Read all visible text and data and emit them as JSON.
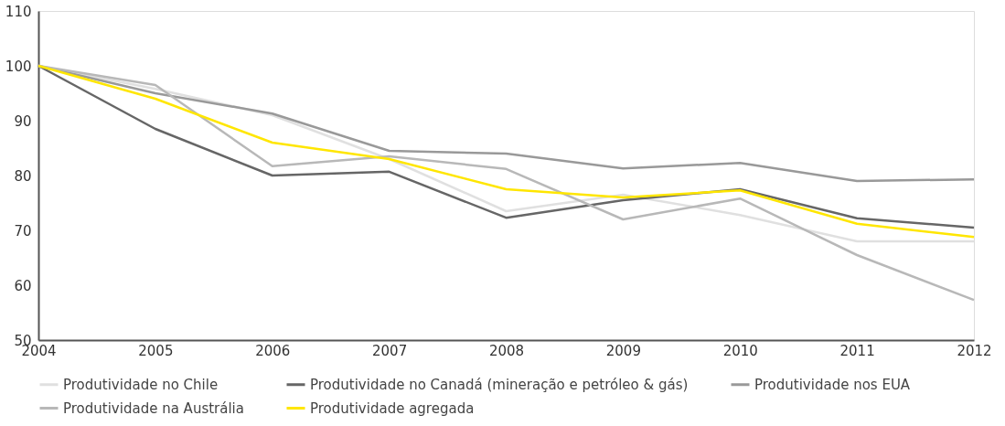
{
  "chart_data": {
    "type": "line",
    "x": [
      2004,
      2005,
      2006,
      2007,
      2008,
      2009,
      2010,
      2011,
      2012
    ],
    "xlim": [
      2004,
      2012
    ],
    "xticks": [
      2004,
      2005,
      2006,
      2007,
      2008,
      2009,
      2010,
      2011,
      2012
    ],
    "ylim": [
      50,
      110
    ],
    "yticks": [
      50,
      60,
      70,
      80,
      90,
      100,
      110
    ],
    "grid": false,
    "legend": "bottom",
    "marker": "none",
    "line_style": "solid",
    "series": [
      {
        "name": "Produtividade no Chile",
        "color": "#e0e0e0",
        "values": [
          100,
          95.8,
          91,
          83,
          73.5,
          76.5,
          72.8,
          68,
          68
        ]
      },
      {
        "name": "Produtividade no Canadá (mineração e petróleo & gás)",
        "color": "#666666",
        "values": [
          100,
          88.5,
          80,
          80.7,
          72.3,
          75.5,
          77.5,
          72.2,
          70.5
        ]
      },
      {
        "name": "Produtividade nos EUA",
        "color": "#999999",
        "values": [
          100,
          95,
          91.3,
          84.5,
          84,
          81.3,
          82.3,
          79,
          79.3
        ]
      },
      {
        "name": "Produtividade na Austrália",
        "color": "#b8b8b8",
        "values": [
          100,
          96.5,
          81.7,
          83.5,
          81.2,
          72,
          75.8,
          65.5,
          57.3
        ]
      },
      {
        "name": "Produtividade agregada",
        "color": "#ffe600",
        "values": [
          100,
          94,
          86,
          83,
          77.5,
          76,
          77.3,
          71.2,
          68.8
        ]
      }
    ]
  }
}
